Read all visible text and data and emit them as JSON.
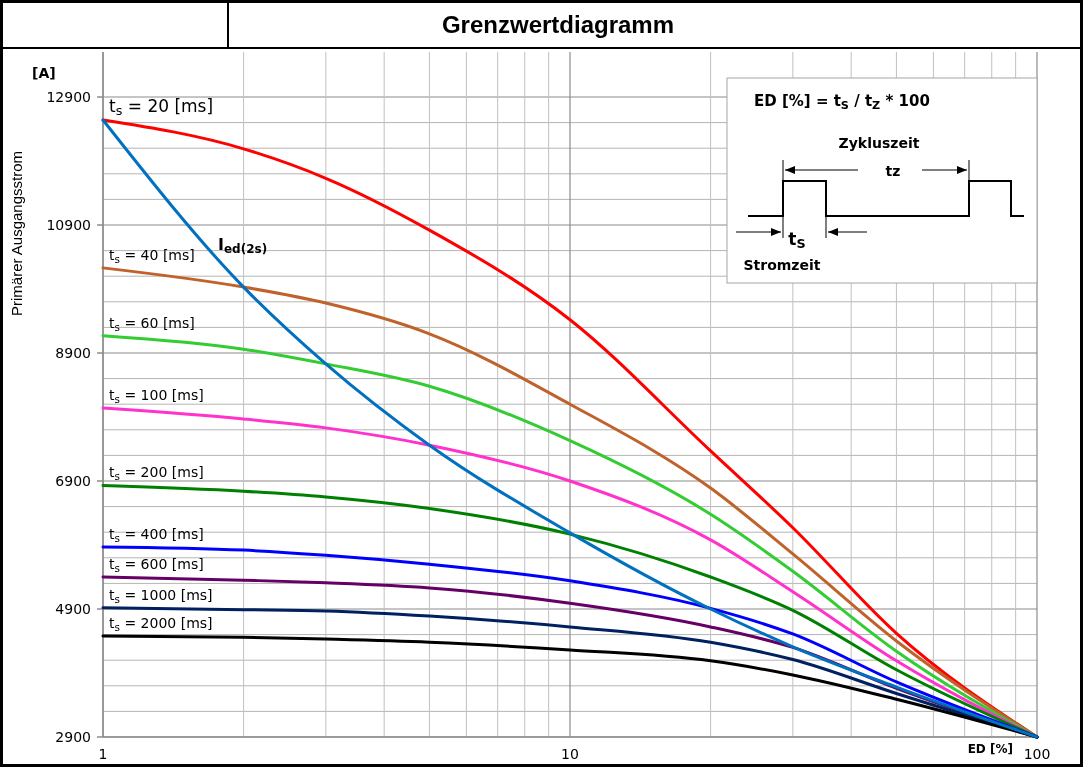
{
  "chart_data": {
    "type": "line",
    "title": "Grenzwertdiagramm",
    "xlabel": "ED [%]",
    "ylabel": "Primärer Ausgangsstrom",
    "log": "x",
    "grid": true,
    "line_style": "solid",
    "marker": "none",
    "xlim": [
      1,
      100
    ],
    "xticks": [
      1,
      10,
      100
    ],
    "ylim": [
      2900,
      12900
    ],
    "yticks": [
      2900,
      4900,
      6900,
      8900,
      10900,
      12900
    ],
    "x": [
      1,
      2,
      3,
      5,
      10,
      20,
      30,
      50,
      100
    ],
    "series": [
      {
        "name": "t$_{s}$ = 20 [ms]",
        "color": "#ff0000",
        "values": [
          12540,
          12090,
          11630,
          10820,
          9420,
          7370,
          6170,
          4520,
          2900
        ]
      },
      {
        "name": "t$_{s}$ = 40 [ms]",
        "color": "#c0622c",
        "values": [
          10230,
          9930,
          9680,
          9200,
          8100,
          6790,
          5760,
          4400,
          2900
        ]
      },
      {
        "name": "t$_{s}$ = 60 [ms]",
        "color": "#33cc33",
        "values": [
          9170,
          8960,
          8730,
          8380,
          7530,
          6380,
          5490,
          4240,
          2900
        ]
      },
      {
        "name": "t$_{s}$ = 100 [ms]",
        "color": "#ff33cc",
        "values": [
          8040,
          7870,
          7730,
          7460,
          6900,
          5980,
          5170,
          4090,
          2900
        ]
      },
      {
        "name": "t$_{s}$ = 200 [ms]",
        "color": "#008000",
        "values": [
          6830,
          6740,
          6650,
          6470,
          6070,
          5400,
          4880,
          3950,
          2900
        ]
      },
      {
        "name": "t$_{s}$ = 400 [ms]",
        "color": "#0000ff",
        "values": [
          5870,
          5820,
          5740,
          5600,
          5340,
          4910,
          4510,
          3760,
          2900
        ]
      },
      {
        "name": "t$_{s}$ = 600 [ms]",
        "color": "#660066",
        "values": [
          5400,
          5350,
          5310,
          5230,
          4990,
          4620,
          4300,
          3660,
          2900
        ]
      },
      {
        "name": "t$_{s}$ = 1000 [ms]",
        "color": "#002060",
        "values": [
          4920,
          4890,
          4870,
          4790,
          4620,
          4380,
          4110,
          3580,
          2900
        ]
      },
      {
        "name": "t$_{s}$ = 2000 [ms]",
        "color": "#000000",
        "values": [
          4480,
          4460,
          4430,
          4380,
          4260,
          4090,
          3870,
          3490,
          2900
        ]
      },
      {
        "color": "#0070c0",
        "values": [
          12540,
          9930,
          8730,
          7460,
          6090,
          4900,
          4310,
          3680,
          2900
        ]
      }
    ],
    "annotations": [
      "I$_{ed(2s)}$",
      "ED [%]  = t$_{S}$ / t$_{Z}$ * 100",
      "Zykluszeit",
      "tz",
      "t$_{S}$",
      "Stromzeit",
      "[A]"
    ]
  }
}
